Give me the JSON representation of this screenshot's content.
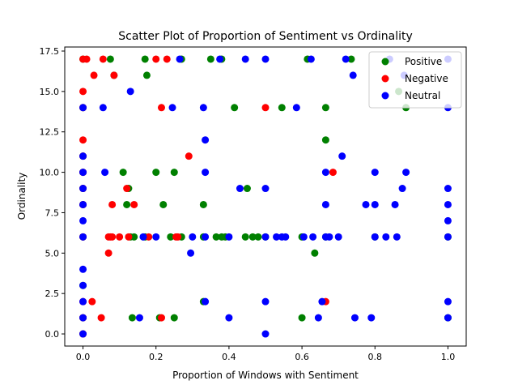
{
  "chart_data": {
    "type": "scatter",
    "title": "Scatter Plot of Proportion of Sentiment vs Ordinality",
    "xlabel": "Proportion of Windows with Sentiment",
    "ylabel": "Ordinality",
    "xlim": [
      -0.05,
      1.05
    ],
    "ylim": [
      -0.75,
      17.75
    ],
    "xticks": [
      0.0,
      0.2,
      0.4,
      0.6,
      0.8,
      1.0
    ],
    "xtick_labels": [
      "0.0",
      "0.2",
      "0.4",
      "0.6",
      "0.8",
      "1.0"
    ],
    "yticks": [
      0.0,
      2.5,
      5.0,
      7.5,
      10.0,
      12.5,
      15.0,
      17.5
    ],
    "ytick_labels": [
      "0.0",
      "2.5",
      "5.0",
      "7.5",
      "10.0",
      "12.5",
      "15.0",
      "17.5"
    ],
    "grid": false,
    "legend_position": "top-right",
    "series": [
      {
        "name": "Positive",
        "color": "#008000",
        "points": [
          [
            0.0,
            17
          ],
          [
            0.0,
            14
          ],
          [
            0.0,
            11
          ],
          [
            0.0,
            10
          ],
          [
            0.0,
            9
          ],
          [
            0.0,
            8
          ],
          [
            0.0,
            6
          ],
          [
            0.0,
            3
          ],
          [
            0.0,
            1
          ],
          [
            0.0,
            0
          ],
          [
            0.075,
            17
          ],
          [
            0.085,
            16
          ],
          [
            0.11,
            10
          ],
          [
            0.12,
            8
          ],
          [
            0.125,
            9
          ],
          [
            0.13,
            6
          ],
          [
            0.135,
            1
          ],
          [
            0.14,
            6
          ],
          [
            0.17,
            17
          ],
          [
            0.175,
            16
          ],
          [
            0.17,
            6
          ],
          [
            0.2,
            10
          ],
          [
            0.21,
            1
          ],
          [
            0.22,
            8
          ],
          [
            0.24,
            6
          ],
          [
            0.25,
            10
          ],
          [
            0.25,
            1
          ],
          [
            0.27,
            17
          ],
          [
            0.27,
            6
          ],
          [
            0.33,
            2
          ],
          [
            0.33,
            8
          ],
          [
            0.33,
            6
          ],
          [
            0.35,
            17
          ],
          [
            0.365,
            6
          ],
          [
            0.38,
            6
          ],
          [
            0.38,
            17
          ],
          [
            0.39,
            6
          ],
          [
            0.415,
            14
          ],
          [
            0.445,
            6
          ],
          [
            0.45,
            9
          ],
          [
            0.465,
            6
          ],
          [
            0.48,
            6
          ],
          [
            0.5,
            6
          ],
          [
            0.545,
            14
          ],
          [
            0.6,
            1
          ],
          [
            0.6,
            6
          ],
          [
            0.615,
            17
          ],
          [
            0.635,
            5
          ],
          [
            0.665,
            14
          ],
          [
            0.665,
            12
          ],
          [
            0.665,
            6
          ],
          [
            0.735,
            17
          ],
          [
            0.8,
            6
          ],
          [
            0.865,
            15
          ],
          [
            0.885,
            14
          ],
          [
            1.0,
            6
          ],
          [
            1.0,
            1
          ]
        ]
      },
      {
        "name": "Negative",
        "color": "#ff0000",
        "points": [
          [
            0.0,
            17
          ],
          [
            0.0,
            15
          ],
          [
            0.0,
            14
          ],
          [
            0.0,
            12
          ],
          [
            0.0,
            11
          ],
          [
            0.0,
            10
          ],
          [
            0.0,
            9
          ],
          [
            0.0,
            8
          ],
          [
            0.0,
            6
          ],
          [
            0.0,
            2
          ],
          [
            0.0,
            1
          ],
          [
            0.0,
            0
          ],
          [
            0.01,
            17
          ],
          [
            0.025,
            2
          ],
          [
            0.03,
            16
          ],
          [
            0.05,
            1
          ],
          [
            0.055,
            17
          ],
          [
            0.07,
            6
          ],
          [
            0.07,
            5
          ],
          [
            0.075,
            6
          ],
          [
            0.08,
            8
          ],
          [
            0.08,
            6
          ],
          [
            0.085,
            16
          ],
          [
            0.1,
            6
          ],
          [
            0.12,
            9
          ],
          [
            0.125,
            6
          ],
          [
            0.14,
            8
          ],
          [
            0.18,
            6
          ],
          [
            0.2,
            17
          ],
          [
            0.215,
            14
          ],
          [
            0.215,
            1
          ],
          [
            0.23,
            17
          ],
          [
            0.255,
            6
          ],
          [
            0.26,
            6
          ],
          [
            0.29,
            11
          ],
          [
            0.5,
            14
          ],
          [
            0.665,
            2
          ],
          [
            0.685,
            10
          ]
        ]
      },
      {
        "name": "Neutral",
        "color": "#0000ff",
        "points": [
          [
            0.0,
            14
          ],
          [
            0.0,
            11
          ],
          [
            0.0,
            10
          ],
          [
            0.0,
            9
          ],
          [
            0.0,
            8
          ],
          [
            0.0,
            7
          ],
          [
            0.0,
            6
          ],
          [
            0.0,
            4
          ],
          [
            0.0,
            3
          ],
          [
            0.0,
            2
          ],
          [
            0.0,
            1
          ],
          [
            0.0,
            0
          ],
          [
            0.055,
            14
          ],
          [
            0.06,
            10
          ],
          [
            0.13,
            15
          ],
          [
            0.155,
            1
          ],
          [
            0.165,
            6
          ],
          [
            0.2,
            6
          ],
          [
            0.245,
            14
          ],
          [
            0.265,
            17
          ],
          [
            0.295,
            5
          ],
          [
            0.3,
            6
          ],
          [
            0.33,
            14
          ],
          [
            0.335,
            12
          ],
          [
            0.335,
            10
          ],
          [
            0.335,
            6
          ],
          [
            0.335,
            2
          ],
          [
            0.375,
            17
          ],
          [
            0.4,
            6
          ],
          [
            0.4,
            1
          ],
          [
            0.43,
            9
          ],
          [
            0.445,
            17
          ],
          [
            0.5,
            17
          ],
          [
            0.5,
            9
          ],
          [
            0.5,
            6
          ],
          [
            0.5,
            2
          ],
          [
            0.5,
            0
          ],
          [
            0.53,
            6
          ],
          [
            0.545,
            6
          ],
          [
            0.555,
            6
          ],
          [
            0.585,
            14
          ],
          [
            0.605,
            6
          ],
          [
            0.625,
            17
          ],
          [
            0.63,
            6
          ],
          [
            0.645,
            1
          ],
          [
            0.655,
            2
          ],
          [
            0.665,
            10
          ],
          [
            0.665,
            8
          ],
          [
            0.665,
            6
          ],
          [
            0.675,
            6
          ],
          [
            0.7,
            6
          ],
          [
            0.71,
            11
          ],
          [
            0.72,
            17
          ],
          [
            0.74,
            16
          ],
          [
            0.745,
            1
          ],
          [
            0.775,
            8
          ],
          [
            0.79,
            1
          ],
          [
            0.8,
            10
          ],
          [
            0.8,
            8
          ],
          [
            0.8,
            6
          ],
          [
            0.83,
            6
          ],
          [
            0.84,
            17
          ],
          [
            0.855,
            8
          ],
          [
            0.86,
            6
          ],
          [
            0.875,
            9
          ],
          [
            0.885,
            10
          ],
          [
            0.88,
            16
          ],
          [
            1.0,
            17
          ],
          [
            1.0,
            14
          ],
          [
            1.0,
            9
          ],
          [
            1.0,
            8
          ],
          [
            1.0,
            7
          ],
          [
            1.0,
            6
          ],
          [
            1.0,
            2
          ],
          [
            1.0,
            1
          ]
        ]
      }
    ]
  }
}
